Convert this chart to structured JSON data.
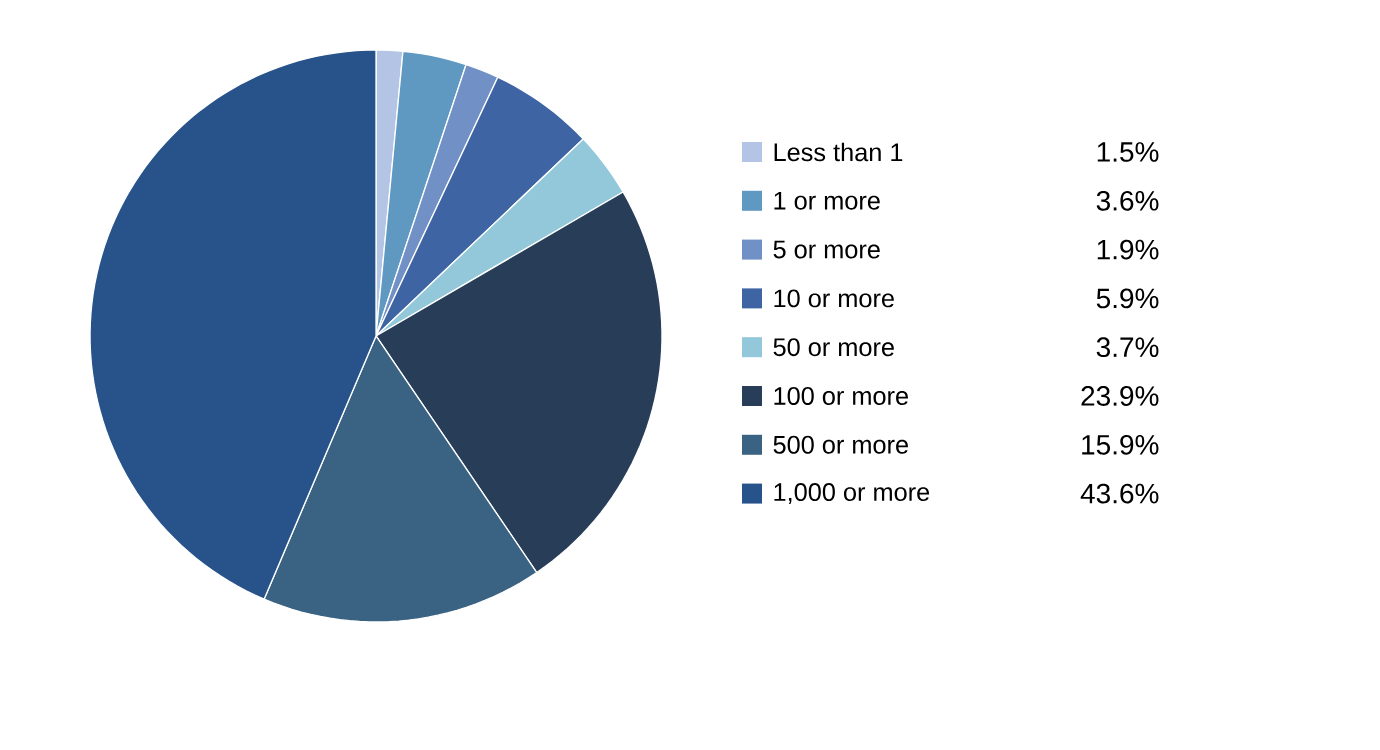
{
  "chart_data": {
    "type": "pie",
    "categories": [
      "Less than 1",
      "1 or more",
      "5 or more",
      "10 or more",
      "50 or more",
      "100 or more",
      "500 or more",
      "1,000 or more"
    ],
    "values": [
      1.5,
      3.6,
      1.9,
      5.9,
      3.7,
      23.9,
      15.9,
      43.6
    ],
    "value_labels": [
      "1.5%",
      "3.6%",
      "1.9%",
      "5.9%",
      "3.7%",
      "23.9%",
      "15.9%",
      "43.6%"
    ],
    "colors": [
      "#b4c4e4",
      "#5f99c1",
      "#7190c6",
      "#3e64a4",
      "#92c8da",
      "#283d58",
      "#3a6282",
      "#27538a"
    ],
    "legend": "right"
  }
}
